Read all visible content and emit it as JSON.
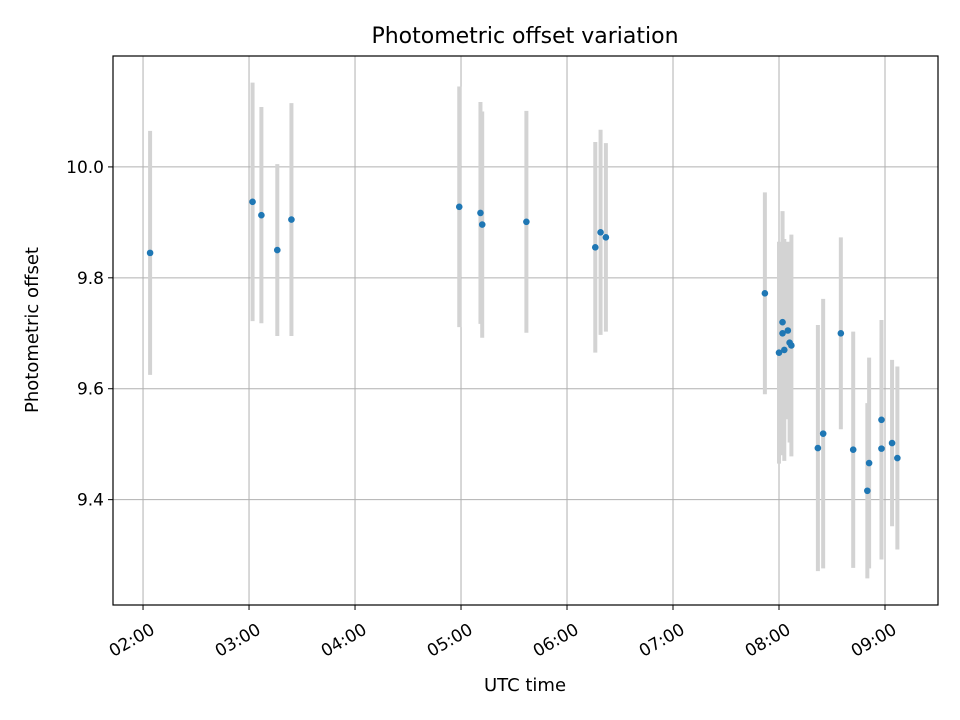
{
  "chart_data": {
    "type": "scatter",
    "title": "Photometric offset variation",
    "xlabel": "UTC time",
    "ylabel": "Photometric offset",
    "x_ticks": [
      "02:00",
      "03:00",
      "04:00",
      "05:00",
      "06:00",
      "07:00",
      "08:00",
      "09:00"
    ],
    "x_tick_times": [
      "02:00",
      "03:00",
      "04:00",
      "05:00",
      "06:00",
      "07:00",
      "08:00",
      "09:00"
    ],
    "xlim": [
      "01:43",
      "09:30"
    ],
    "y_ticks": [
      9.4,
      9.6,
      9.8,
      10.0
    ],
    "ylim": [
      9.21,
      10.2
    ],
    "grid": true,
    "colors": {
      "point": "#1f77b4",
      "errorbar": "#d3d3d3",
      "grid": "#b0b0b0"
    },
    "points": [
      {
        "x": "02:04",
        "y": 9.845,
        "err": 0.22
      },
      {
        "x": "03:02",
        "y": 9.937,
        "err": 0.215
      },
      {
        "x": "03:07",
        "y": 9.913,
        "err": 0.195
      },
      {
        "x": "03:16",
        "y": 9.85,
        "err": 0.155
      },
      {
        "x": "03:24",
        "y": 9.905,
        "err": 0.21
      },
      {
        "x": "04:59",
        "y": 9.928,
        "err": 0.217
      },
      {
        "x": "05:11",
        "y": 9.917,
        "err": 0.2
      },
      {
        "x": "05:12",
        "y": 9.896,
        "err": 0.204
      },
      {
        "x": "05:37",
        "y": 9.901,
        "err": 0.2
      },
      {
        "x": "06:16",
        "y": 9.855,
        "err": 0.19
      },
      {
        "x": "06:19",
        "y": 9.882,
        "err": 0.185
      },
      {
        "x": "06:22",
        "y": 9.873,
        "err": 0.17
      },
      {
        "x": "07:52",
        "y": 9.772,
        "err": 0.182
      },
      {
        "x": "08:00",
        "y": 9.665,
        "err": 0.2
      },
      {
        "x": "08:02",
        "y": 9.72,
        "err": 0.2
      },
      {
        "x": "08:02",
        "y": 9.7,
        "err": 0.22
      },
      {
        "x": "08:03",
        "y": 9.67,
        "err": 0.2
      },
      {
        "x": "08:05",
        "y": 9.705,
        "err": 0.16
      },
      {
        "x": "08:06",
        "y": 9.683,
        "err": 0.18
      },
      {
        "x": "08:07",
        "y": 9.678,
        "err": 0.2
      },
      {
        "x": "08:22",
        "y": 9.493,
        "err": 0.222
      },
      {
        "x": "08:25",
        "y": 9.519,
        "err": 0.243
      },
      {
        "x": "08:35",
        "y": 9.7,
        "err": 0.173
      },
      {
        "x": "08:42",
        "y": 9.49,
        "err": 0.213
      },
      {
        "x": "08:50",
        "y": 9.416,
        "err": 0.158
      },
      {
        "x": "08:51",
        "y": 9.466,
        "err": 0.19
      },
      {
        "x": "08:58",
        "y": 9.544,
        "err": 0.18
      },
      {
        "x": "08:58",
        "y": 9.492,
        "err": 0.2
      },
      {
        "x": "09:04",
        "y": 9.502,
        "err": 0.15
      },
      {
        "x": "09:07",
        "y": 9.475,
        "err": 0.165
      }
    ]
  }
}
